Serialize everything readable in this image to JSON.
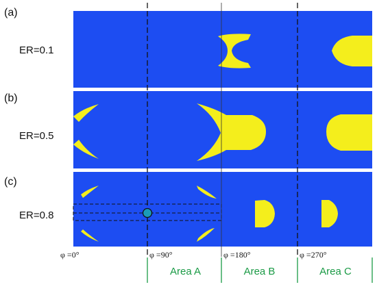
{
  "panels": [
    {
      "label": "(a)",
      "er": "ER=0.1"
    },
    {
      "label": "(b)",
      "er": "ER=0.5"
    },
    {
      "label": "(c)",
      "er": "ER=0.8"
    }
  ],
  "phase_labels": [
    "φ =0°",
    "φ =90°",
    "φ =180°",
    "φ =270°"
  ],
  "areas": [
    "Area A",
    "Area B",
    "Area C"
  ],
  "colors": {
    "background_fill": "#1d4df2",
    "region_fill": "#f4ee1c",
    "marker_fill": "#1b9bb8",
    "area_line": "#1a9a45",
    "divider": "#ffffff"
  }
}
